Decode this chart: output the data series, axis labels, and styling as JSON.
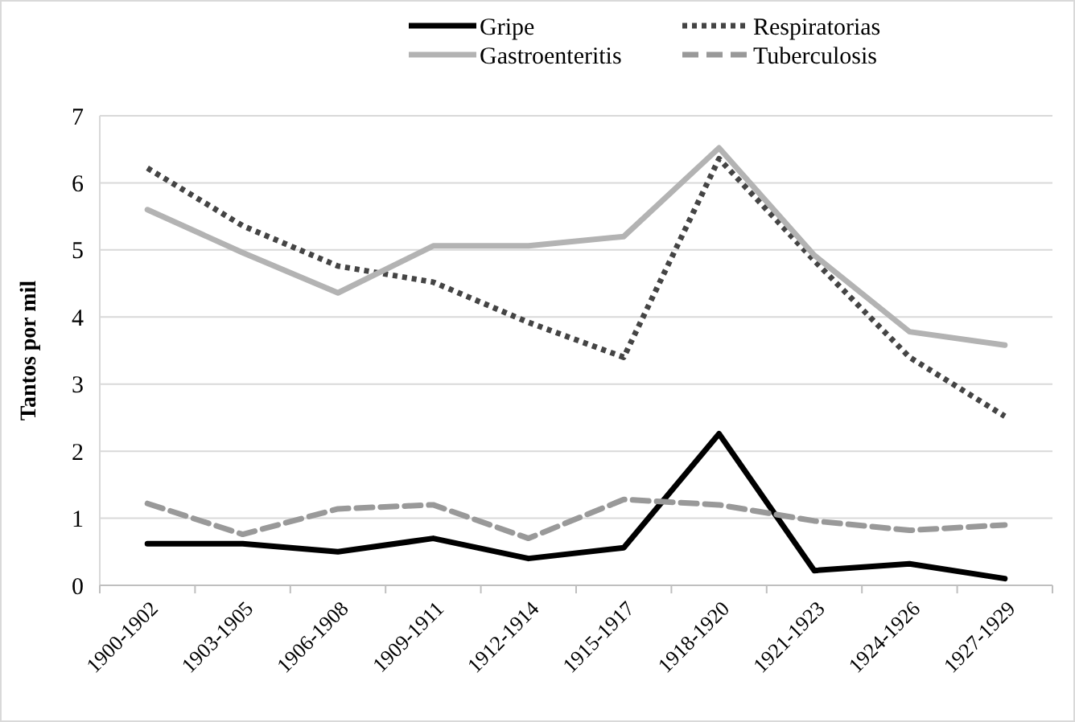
{
  "chart_data": {
    "type": "line",
    "ylabel": "Tantos por mil",
    "categories": [
      "1900-1902",
      "1903-1905",
      "1906-1908",
      "1909-1911",
      "1912-1914",
      "1915-1917",
      "1918-1920",
      "1921-1923",
      "1924-1926",
      "1927-1929"
    ],
    "series": [
      {
        "name": "Gripe",
        "color": "#000000",
        "line_style": "solid",
        "values": [
          0.62,
          0.62,
          0.5,
          0.7,
          0.4,
          0.56,
          2.26,
          0.22,
          0.32,
          0.1
        ]
      },
      {
        "name": "Respiratorias",
        "color": "#444444",
        "line_style": "dotted",
        "values": [
          6.22,
          5.36,
          4.76,
          4.52,
          3.92,
          3.4,
          6.36,
          4.84,
          3.4,
          2.52
        ]
      },
      {
        "name": "Gastroenteritis",
        "color": "#b3b3b3",
        "line_style": "solid",
        "values": [
          5.6,
          4.96,
          4.36,
          5.06,
          5.06,
          5.2,
          6.52,
          4.92,
          3.78,
          3.58
        ]
      },
      {
        "name": "Tuberculosis",
        "color": "#999999",
        "line_style": "dashed",
        "values": [
          1.22,
          0.76,
          1.14,
          1.2,
          0.7,
          1.28,
          1.2,
          0.96,
          0.82,
          0.9
        ]
      }
    ],
    "ylim": [
      0,
      7
    ],
    "yticks": [
      0,
      1,
      2,
      3,
      4,
      5,
      6,
      7
    ],
    "grid": "y",
    "legend": "top",
    "marker": "none"
  }
}
